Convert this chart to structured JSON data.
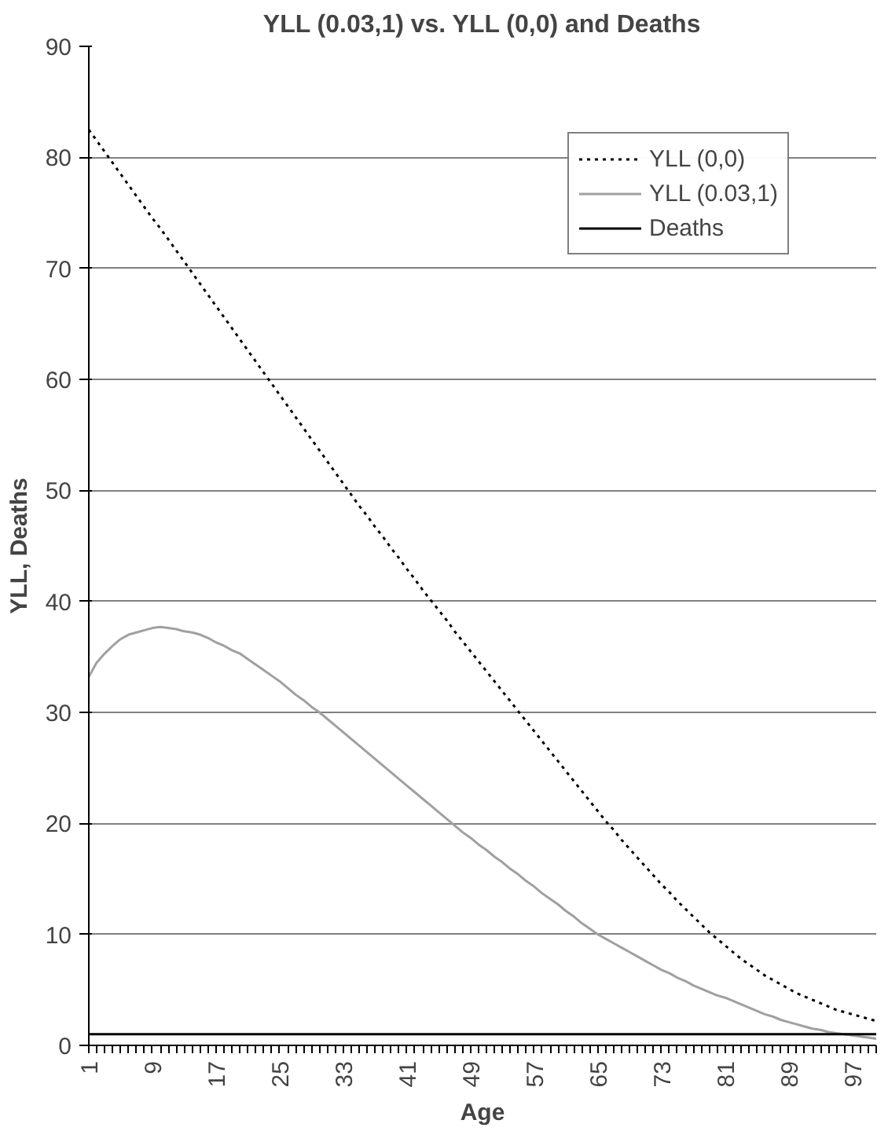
{
  "chart_data": {
    "type": "line",
    "title": "YLL (0.03,1) vs. YLL (0,0) and Deaths",
    "xlabel": "Age",
    "ylabel": "YLL, Deaths",
    "categories": [
      "1",
      null,
      null,
      null,
      null,
      null,
      null,
      null,
      "9",
      null,
      null,
      null,
      null,
      null,
      null,
      null,
      "17",
      null,
      null,
      null,
      null,
      null,
      null,
      null,
      "25",
      null,
      null,
      null,
      null,
      null,
      null,
      null,
      "33",
      null,
      null,
      null,
      null,
      null,
      null,
      null,
      "41",
      null,
      null,
      null,
      null,
      null,
      null,
      null,
      "49",
      null,
      null,
      null,
      null,
      null,
      null,
      null,
      "57",
      null,
      null,
      null,
      null,
      null,
      null,
      null,
      "65",
      null,
      null,
      null,
      null,
      null,
      null,
      null,
      "73",
      null,
      null,
      null,
      null,
      null,
      null,
      null,
      "81",
      null,
      null,
      null,
      null,
      null,
      null,
      null,
      "89",
      null,
      null,
      null,
      null,
      null,
      null,
      null,
      "97",
      null,
      null,
      null
    ],
    "series": [
      {
        "name": "YLL (0,0)",
        "color": "#000000",
        "line_style": "dotted",
        "values": [
          82.5,
          81.5,
          80.5,
          79.5,
          78.5,
          77.5,
          76.5,
          75.5,
          74.5,
          73.6,
          72.6,
          71.6,
          70.6,
          69.6,
          68.6,
          67.6,
          66.6,
          65.6,
          64.6,
          63.6,
          62.6,
          61.6,
          60.6,
          59.6,
          58.6,
          57.6,
          56.6,
          55.6,
          54.6,
          53.6,
          52.6,
          51.6,
          50.6,
          49.6,
          48.6,
          47.7,
          46.7,
          45.8,
          44.8,
          43.9,
          42.9,
          42.0,
          41.0,
          40.1,
          39.2,
          38.3,
          37.3,
          36.4,
          35.5,
          34.6,
          33.7,
          32.8,
          31.9,
          31.0,
          30.1,
          29.2,
          28.3,
          27.4,
          26.5,
          25.6,
          24.7,
          23.8,
          22.9,
          22.0,
          21.1,
          20.2,
          19.4,
          18.5,
          17.7,
          16.9,
          16.1,
          15.3,
          14.5,
          13.8,
          13.0,
          12.3,
          11.6,
          10.9,
          10.2,
          9.6,
          9.0,
          8.4,
          7.8,
          7.3,
          6.8,
          6.3,
          5.9,
          5.5,
          5.1,
          4.7,
          4.4,
          4.1,
          3.8,
          3.5,
          3.2,
          3.0,
          2.8,
          2.6,
          2.4,
          2.2
        ]
      },
      {
        "name": "YLL (0.03,1)",
        "color": "#a0a0a0",
        "line_style": "solid",
        "values": [
          33.2,
          34.5,
          35.3,
          36.0,
          36.6,
          37.0,
          37.2,
          37.4,
          37.6,
          37.7,
          37.6,
          37.5,
          37.3,
          37.2,
          37.0,
          36.7,
          36.3,
          36.0,
          35.6,
          35.3,
          34.8,
          34.3,
          33.8,
          33.3,
          32.8,
          32.2,
          31.6,
          31.1,
          30.5,
          30.0,
          29.4,
          28.8,
          28.2,
          27.6,
          27.0,
          26.4,
          25.8,
          25.2,
          24.6,
          24.0,
          23.4,
          22.8,
          22.2,
          21.6,
          21.0,
          20.4,
          19.8,
          19.2,
          18.7,
          18.1,
          17.6,
          17.0,
          16.5,
          15.9,
          15.4,
          14.8,
          14.3,
          13.7,
          13.2,
          12.7,
          12.1,
          11.6,
          11.0,
          10.5,
          10.0,
          9.6,
          9.2,
          8.8,
          8.4,
          8.0,
          7.6,
          7.2,
          6.8,
          6.5,
          6.1,
          5.8,
          5.4,
          5.1,
          4.8,
          4.5,
          4.3,
          4.0,
          3.7,
          3.4,
          3.1,
          2.8,
          2.6,
          2.3,
          2.1,
          1.9,
          1.7,
          1.5,
          1.4,
          1.2,
          1.1,
          1.0,
          0.9,
          0.8,
          0.7,
          0.6
        ]
      },
      {
        "name": "Deaths",
        "color": "#000000",
        "line_style": "solid",
        "values": [
          1,
          1,
          1,
          1,
          1,
          1,
          1,
          1,
          1,
          1,
          1,
          1,
          1,
          1,
          1,
          1,
          1,
          1,
          1,
          1,
          1,
          1,
          1,
          1,
          1,
          1,
          1,
          1,
          1,
          1,
          1,
          1,
          1,
          1,
          1,
          1,
          1,
          1,
          1,
          1,
          1,
          1,
          1,
          1,
          1,
          1,
          1,
          1,
          1,
          1,
          1,
          1,
          1,
          1,
          1,
          1,
          1,
          1,
          1,
          1,
          1,
          1,
          1,
          1,
          1,
          1,
          1,
          1,
          1,
          1,
          1,
          1,
          1,
          1,
          1,
          1,
          1,
          1,
          1,
          1,
          1,
          1,
          1,
          1,
          1,
          1,
          1,
          1,
          1,
          1,
          1,
          1,
          1,
          1,
          1,
          1,
          1,
          1,
          1,
          1
        ]
      }
    ],
    "ylim": [
      0,
      90
    ],
    "yticks": [
      0,
      10,
      20,
      30,
      40,
      50,
      60,
      70,
      80,
      90
    ],
    "grid": "y",
    "legend": "top right"
  }
}
